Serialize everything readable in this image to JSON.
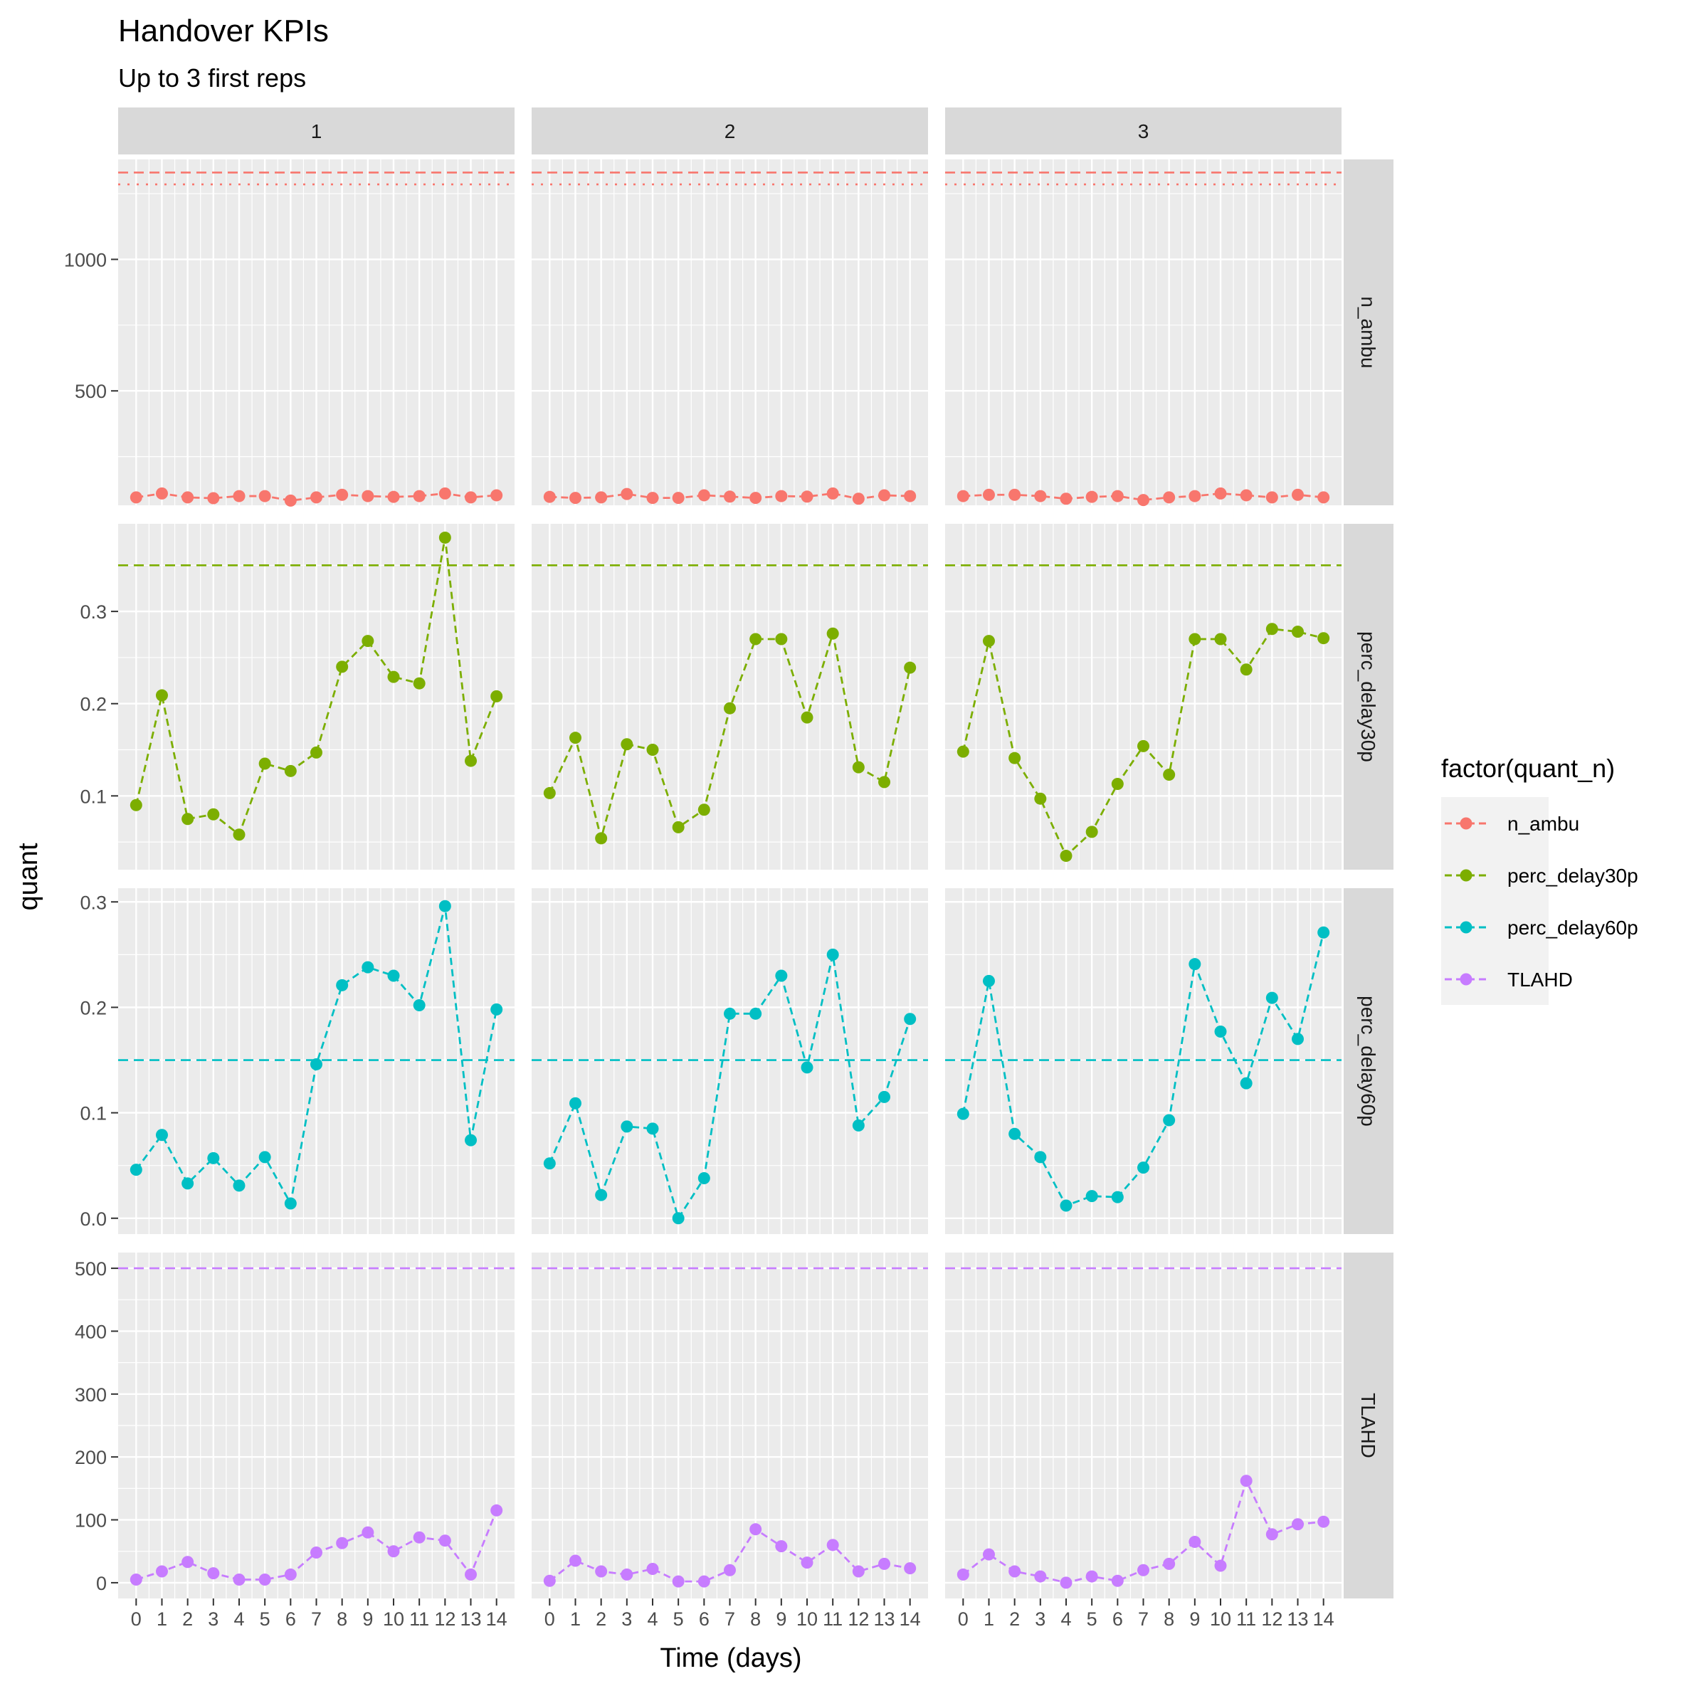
{
  "chart_data": {
    "type": "line",
    "title": "Handover KPIs",
    "subtitle": "Up to 3 first reps",
    "xlabel": "Time (days)",
    "ylabel": "quant",
    "x": [
      0,
      1,
      2,
      3,
      4,
      5,
      6,
      7,
      8,
      9,
      10,
      11,
      12,
      13,
      14
    ],
    "xlim": [
      -0.7,
      14.7
    ],
    "facet_columns": [
      "1",
      "2",
      "3"
    ],
    "facet_rows": [
      "n_ambu",
      "perc_delay30p",
      "perc_delay60p",
      "TLAHD"
    ],
    "legend": {
      "title": "factor(quant_n)",
      "position": "right",
      "entries": [
        "n_ambu",
        "perc_delay30p",
        "perc_delay60p",
        "TLAHD"
      ]
    },
    "colors": {
      "n_ambu": "#F8766D",
      "perc_delay30p": "#7CAE00",
      "perc_delay60p": "#00BFC4",
      "TLAHD": "#C77CFF",
      "panel_background": "#EBEBEB",
      "strip_background": "#D9D9D9",
      "grid": "#FFFFFF"
    },
    "rows": [
      {
        "name": "n_ambu",
        "ylim": [
          65,
          1380
        ],
        "yticks": [
          500,
          1000
        ],
        "ytick_labels": [
          "500",
          "1000"
        ],
        "reference_lines": [
          {
            "y": 1330,
            "style": "dashed"
          },
          {
            "y": 1285,
            "style": "dotted"
          }
        ],
        "series": [
          {
            "facet": "1",
            "values": [
              95,
              110,
              95,
              92,
              100,
              100,
              83,
              95,
              105,
              100,
              97,
              100,
              110,
              95,
              103
            ]
          },
          {
            "facet": "2",
            "values": [
              97,
              93,
              95,
              108,
              93,
              93,
              103,
              98,
              93,
              100,
              98,
              110,
              90,
              103,
              100
            ]
          },
          {
            "facet": "3",
            "values": [
              100,
              105,
              105,
              100,
              90,
              97,
              100,
              85,
              95,
              100,
              110,
              103,
              95,
              105,
              95
            ]
          }
        ]
      },
      {
        "name": "perc_delay30p",
        "ylim": [
          0.02,
          0.395
        ],
        "yticks": [
          0.1,
          0.2,
          0.3
        ],
        "ytick_labels": [
          "0.1",
          "0.2",
          "0.3"
        ],
        "reference_lines": [
          {
            "y": 0.35,
            "style": "dashed"
          }
        ],
        "series": [
          {
            "facet": "1",
            "values": [
              0.09,
              0.209,
              0.075,
              0.08,
              0.058,
              0.135,
              0.127,
              0.147,
              0.24,
              0.268,
              0.229,
              0.222,
              0.38,
              0.138,
              0.208
            ]
          },
          {
            "facet": "2",
            "values": [
              0.103,
              0.163,
              0.054,
              0.156,
              0.15,
              0.066,
              0.085,
              0.195,
              0.27,
              0.27,
              0.185,
              0.276,
              0.131,
              0.115,
              0.239
            ]
          },
          {
            "facet": "3",
            "values": [
              0.148,
              0.268,
              0.141,
              0.097,
              0.035,
              0.061,
              0.113,
              0.154,
              0.123,
              0.27,
              0.27,
              0.237,
              0.281,
              0.278,
              0.271
            ]
          }
        ]
      },
      {
        "name": "perc_delay60p",
        "ylim": [
          -0.015,
          0.313
        ],
        "yticks": [
          0.0,
          0.1,
          0.2,
          0.3
        ],
        "ytick_labels": [
          "0.0",
          "0.1",
          "0.2",
          "0.3"
        ],
        "reference_lines": [
          {
            "y": 0.15,
            "style": "dashed"
          }
        ],
        "series": [
          {
            "facet": "1",
            "values": [
              0.046,
              0.079,
              0.033,
              0.057,
              0.031,
              0.058,
              0.014,
              0.146,
              0.221,
              0.238,
              0.23,
              0.202,
              0.296,
              0.074,
              0.198
            ]
          },
          {
            "facet": "2",
            "values": [
              0.052,
              0.109,
              0.022,
              0.087,
              0.085,
              0.0,
              0.038,
              0.194,
              0.194,
              0.23,
              0.143,
              0.25,
              0.088,
              0.115,
              0.189
            ]
          },
          {
            "facet": "3",
            "values": [
              0.099,
              0.225,
              0.08,
              0.058,
              0.012,
              0.021,
              0.02,
              0.048,
              0.093,
              0.241,
              0.177,
              0.128,
              0.209,
              0.17,
              0.271
            ]
          }
        ]
      },
      {
        "name": "TLAHD",
        "ylim": [
          -25,
          525
        ],
        "yticks": [
          0,
          100,
          200,
          300,
          400,
          500
        ],
        "ytick_labels": [
          "0",
          "100",
          "200",
          "300",
          "400",
          "500"
        ],
        "reference_lines": [
          {
            "y": 500,
            "style": "dashed"
          }
        ],
        "series": [
          {
            "facet": "1",
            "values": [
              5,
              18,
              33,
              15,
              5,
              5,
              13,
              48,
              63,
              80,
              50,
              72,
              67,
              13,
              115
            ]
          },
          {
            "facet": "2",
            "values": [
              3,
              35,
              18,
              13,
              22,
              2,
              2,
              20,
              85,
              58,
              32,
              60,
              18,
              30,
              23
            ]
          },
          {
            "facet": "3",
            "values": [
              13,
              45,
              18,
              10,
              0,
              10,
              3,
              20,
              30,
              65,
              27,
              162,
              77,
              93,
              97
            ]
          }
        ]
      }
    ]
  }
}
